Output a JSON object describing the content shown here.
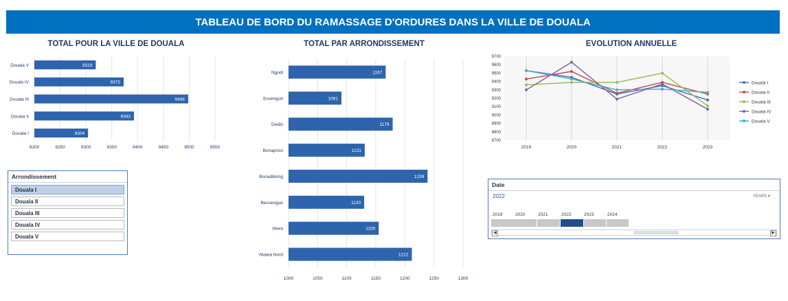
{
  "title": "TABLEAU DE BORD DU RAMASSAGE D'ORDURES DANS LA VILLE DE DOUALA",
  "chart_data": [
    {
      "type": "bar",
      "orientation": "horizontal",
      "title": "TOTAL POUR LA VILLE DE DOUALA",
      "categories": [
        "Douala V",
        "Douala IV",
        "Douala III",
        "Douala II",
        "Douala I"
      ],
      "values": [
        9319,
        9373,
        9498,
        9393,
        9304
      ],
      "xlim": [
        9200,
        9550
      ],
      "xticks": [
        "9200",
        "9250",
        "9300",
        "9350",
        "9400",
        "9450",
        "9500",
        "9550"
      ],
      "color": "#2e64ad"
    },
    {
      "type": "bar",
      "orientation": "horizontal",
      "title": "TOTAL PAR ARRONDISSEMENT",
      "categories": [
        "Ngodi",
        "Essengue",
        "Deido",
        "Bonapriso",
        "Bonadibong",
        "Bessengue",
        "Akwa",
        "Akawa Nord"
      ],
      "values": [
        1167,
        1091,
        1179,
        1131,
        1239,
        1130,
        1155,
        1212
      ],
      "xlim": [
        1000,
        1300
      ],
      "xticks": [
        "1000",
        "1050",
        "1100",
        "1150",
        "1200",
        "1250",
        "1300"
      ],
      "color": "#2e64ad"
    },
    {
      "type": "line",
      "title": "EVOLUTION ANNUELLE",
      "x": [
        "2019",
        "2020",
        "2021",
        "2022",
        "2023"
      ],
      "ylim": [
        8700,
        9700
      ],
      "yticks": [
        "9700",
        "9600",
        "9500",
        "9400",
        "9300",
        "9200",
        "9100",
        "9000",
        "8900",
        "8800",
        "8700"
      ],
      "legend": "right",
      "series": [
        {
          "name": "Douala I",
          "values": [
            9530,
            9450,
            9250,
            9350,
            9180
          ],
          "color": "#4472c4"
        },
        {
          "name": "Douala II",
          "values": [
            9430,
            9520,
            9260,
            9390,
            9250
          ],
          "color": "#c0504d"
        },
        {
          "name": "Douala III",
          "values": [
            9360,
            9390,
            9390,
            9500,
            9110
          ],
          "color": "#9bbb59"
        },
        {
          "name": "Douala IV",
          "values": [
            9300,
            9630,
            9190,
            9370,
            9070
          ],
          "color": "#8064a2"
        },
        {
          "name": "Douala V",
          "values": [
            9530,
            9430,
            9300,
            9310,
            9270
          ],
          "color": "#4bacc6"
        }
      ]
    }
  ],
  "slicer": {
    "title": "Arrondissement",
    "items": [
      "Douala I",
      "Douala II",
      "Douala III",
      "Douala IV",
      "Douala V"
    ],
    "selected": "Douala I"
  },
  "timeline": {
    "title": "Date",
    "selected": "2022",
    "level": "YEARS",
    "years": [
      "2019",
      "2020",
      "2021",
      "2022",
      "2023",
      "2024"
    ],
    "selected_year": "2022"
  }
}
